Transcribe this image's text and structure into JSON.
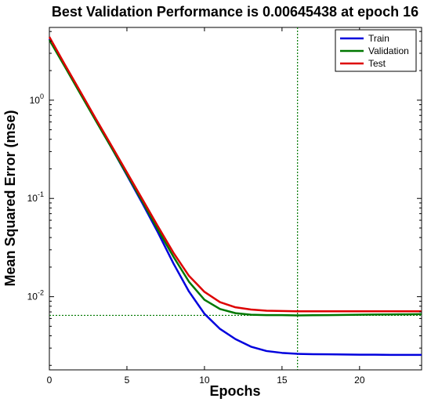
{
  "chart_data": {
    "type": "line",
    "title": "Best Validation Performance is 0.00645438 at epoch 16",
    "xlabel": "Epochs",
    "ylabel": "Mean Squared Error  (mse)",
    "xlim": [
      0,
      24
    ],
    "ylim": [
      0.0018,
      5.5
    ],
    "yscale": "log",
    "x_ticks": [
      "0",
      "5",
      "10",
      "15",
      "20"
    ],
    "y_ticks": [
      {
        "base": "10",
        "exp": "0",
        "value": 1
      },
      {
        "base": "10",
        "exp": "-1",
        "value": 0.1
      },
      {
        "base": "10",
        "exp": "-2",
        "value": 0.01
      }
    ],
    "legend_position": "top-right",
    "grid": false,
    "x": [
      0,
      1,
      2,
      3,
      4,
      5,
      6,
      7,
      8,
      9,
      10,
      11,
      12,
      13,
      14,
      15,
      16,
      17,
      18,
      19,
      20,
      21,
      22,
      23,
      24
    ],
    "series": [
      {
        "name": "Train",
        "color": "#0000dd",
        "values": [
          4.2,
          2.23,
          1.18,
          0.62,
          0.33,
          0.172,
          0.089,
          0.045,
          0.0218,
          0.0113,
          0.0067,
          0.0047,
          0.0037,
          0.0031,
          0.0028,
          0.00268,
          0.00262,
          0.0026,
          0.00259,
          0.00258,
          0.00257,
          0.00257,
          0.00256,
          0.00256,
          0.00256
        ]
      },
      {
        "name": "Validation",
        "color": "#007700",
        "values": [
          4.1,
          2.19,
          1.16,
          0.615,
          0.33,
          0.176,
          0.093,
          0.048,
          0.0255,
          0.0142,
          0.0093,
          0.0075,
          0.0068,
          0.00655,
          0.0065,
          0.0065,
          0.00645438,
          0.00648,
          0.0065,
          0.00652,
          0.00655,
          0.00658,
          0.0066,
          0.00662,
          0.00664
        ]
      },
      {
        "name": "Test",
        "color": "#dd0000",
        "values": [
          4.4,
          2.3,
          1.22,
          0.645,
          0.345,
          0.184,
          0.098,
          0.052,
          0.028,
          0.0163,
          0.0112,
          0.0088,
          0.0078,
          0.0074,
          0.0072,
          0.00715,
          0.0071,
          0.0071,
          0.0071,
          0.0071,
          0.0071,
          0.0071,
          0.0071,
          0.0071,
          0.0071
        ]
      }
    ],
    "best": {
      "epoch": 16,
      "value": 0.00645438,
      "color": "#007700"
    }
  }
}
